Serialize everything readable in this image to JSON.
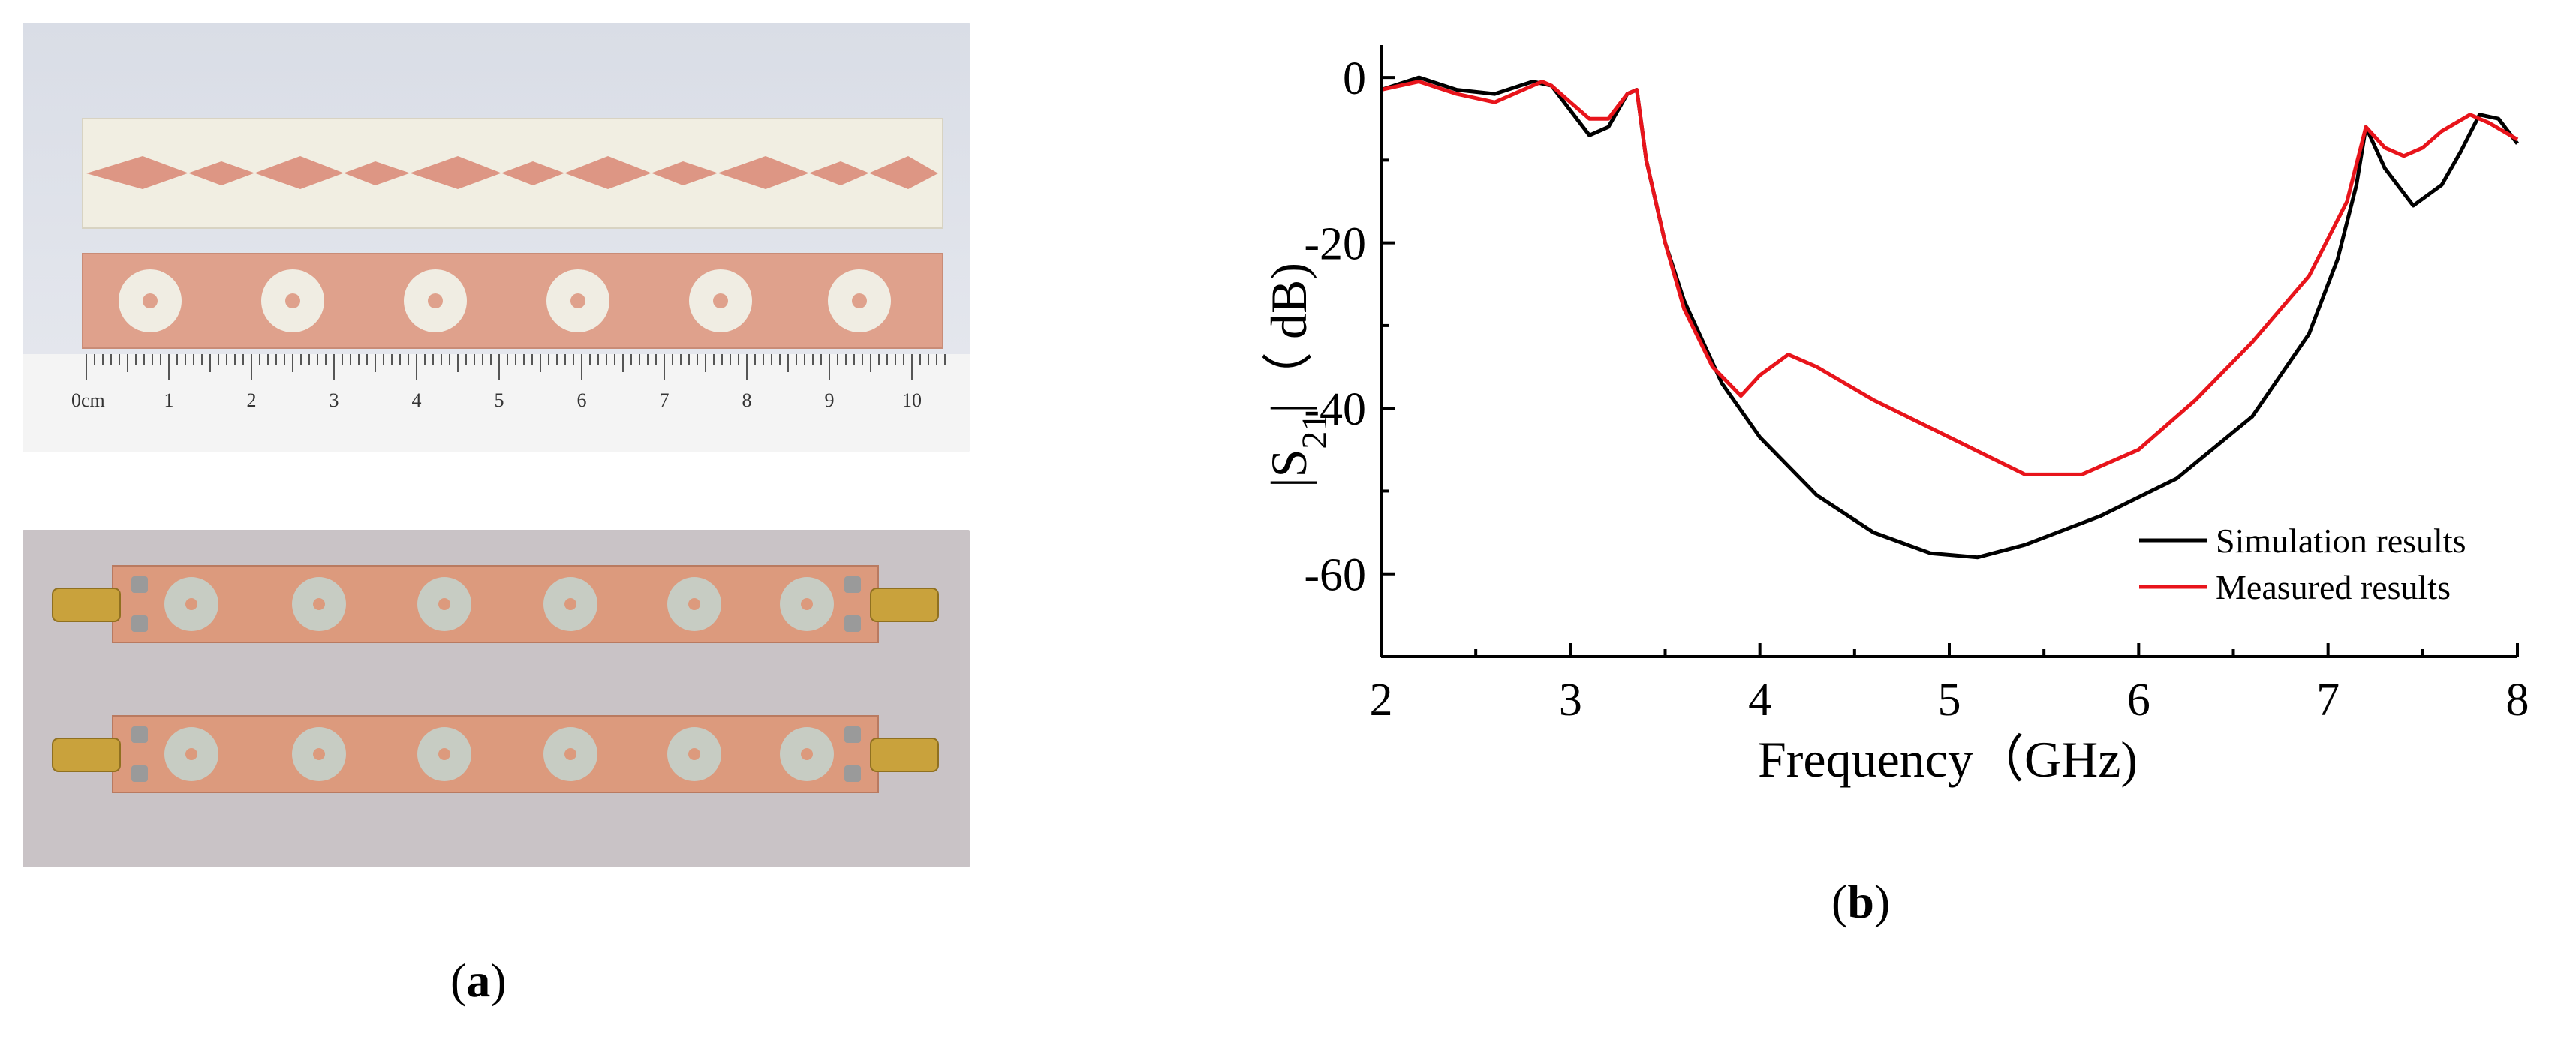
{
  "panel_a": {
    "caption_open": "(",
    "caption_letter": "a",
    "caption_close": ")",
    "ruler": {
      "unit_label": "0cm",
      "tick_labels": [
        "1",
        "2",
        "3",
        "4",
        "5",
        "6",
        "7",
        "8",
        "9",
        "10"
      ]
    }
  },
  "panel_b": {
    "caption_open": "(",
    "caption_letter": "b",
    "caption_close": ")"
  },
  "chart_data": {
    "type": "line",
    "title": "",
    "xlabel": "Frequency（GHz)",
    "ylabel_prefix": "|S",
    "ylabel_sub": "21",
    "ylabel_suffix": "|（ dB)",
    "xlim": [
      2,
      8
    ],
    "ylim": [
      -70,
      3
    ],
    "xticks": [
      2,
      3,
      4,
      5,
      6,
      7,
      8
    ],
    "yticks": [
      0,
      -20,
      -40,
      -60
    ],
    "grid": false,
    "legend_position": "bottom-right",
    "series": [
      {
        "name": "Simulation results",
        "color": "#000000",
        "x": [
          2.0,
          2.2,
          2.4,
          2.6,
          2.8,
          2.9,
          3.0,
          3.1,
          3.2,
          3.3,
          3.35,
          3.4,
          3.5,
          3.6,
          3.8,
          4.0,
          4.3,
          4.6,
          4.9,
          5.15,
          5.4,
          5.8,
          6.2,
          6.6,
          6.9,
          7.05,
          7.15,
          7.2,
          7.3,
          7.45,
          7.6,
          7.7,
          7.8,
          7.9,
          8.0
        ],
        "y": [
          -1.5,
          0.0,
          -1.5,
          -2.0,
          -0.5,
          -1.0,
          -4.0,
          -7.0,
          -6.0,
          -2.0,
          -1.5,
          -10.0,
          -20.0,
          -27.0,
          -37.0,
          -43.5,
          -50.5,
          -55.0,
          -57.5,
          -58.0,
          -56.5,
          -53.0,
          -48.5,
          -41.0,
          -31.0,
          -22.0,
          -13.0,
          -6.0,
          -11.0,
          -15.5,
          -13.0,
          -9.0,
          -4.5,
          -5.0,
          -8.0
        ]
      },
      {
        "name": "Measured results",
        "color": "#e8141b",
        "x": [
          2.0,
          2.2,
          2.4,
          2.6,
          2.85,
          2.9,
          3.0,
          3.1,
          3.2,
          3.3,
          3.35,
          3.4,
          3.5,
          3.6,
          3.75,
          3.9,
          4.0,
          4.15,
          4.3,
          4.6,
          5.0,
          5.4,
          5.7,
          6.0,
          6.3,
          6.6,
          6.9,
          7.1,
          7.2,
          7.3,
          7.4,
          7.5,
          7.6,
          7.75,
          7.85,
          8.0
        ],
        "y": [
          -1.5,
          -0.5,
          -2.0,
          -3.0,
          -0.5,
          -1.0,
          -3.0,
          -5.0,
          -5.0,
          -2.0,
          -1.5,
          -10.0,
          -20.0,
          -28.0,
          -35.0,
          -38.5,
          -36.0,
          -33.5,
          -35.0,
          -39.0,
          -43.5,
          -48.0,
          -48.0,
          -45.0,
          -39.0,
          -32.0,
          -24.0,
          -15.0,
          -6.0,
          -8.5,
          -9.5,
          -8.5,
          -6.5,
          -4.5,
          -5.5,
          -7.5
        ]
      }
    ]
  }
}
